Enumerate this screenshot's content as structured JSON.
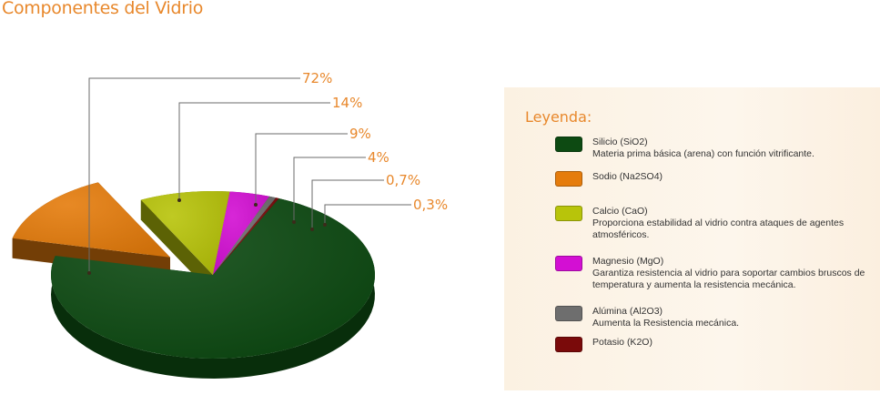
{
  "page": {
    "title": "Componentes del Vidrio"
  },
  "legend": {
    "title": "Leyenda:",
    "items": [
      {
        "name": "Silicio (SiO2)",
        "description": "Materia prima básica (arena) con función vitrificante.",
        "color": "#0d4a12"
      },
      {
        "name": "Sodio (Na2SO4)",
        "description": "",
        "color": "#e57c0c"
      },
      {
        "name": "Calcio (CaO)",
        "description": "Proporciona estabilidad al vidrio contra ataques de agentes atmosféricos.",
        "color": "#b8c40a"
      },
      {
        "name": "Magnesio (MgO)",
        "description": "Garantiza resistencia al vidrio para soportar cambios bruscos de temperatura y aumenta la resistencia mecánica.",
        "color": "#d30fd3"
      },
      {
        "name": "Alúmina (Al2O3)",
        "description": "Aumenta la Resistencia mecánica.",
        "color": "#6e6e6e"
      },
      {
        "name": "Potasio (K2O)",
        "description": "",
        "color": "#7a0a0a"
      }
    ]
  },
  "chart_data": {
    "type": "pie",
    "title": "Componentes del Vidrio",
    "categories": [
      "Silicio (SiO2)",
      "Sodio (Na2SO4)",
      "Calcio (CaO)",
      "Magnesio (MgO)",
      "Alúmina (Al2O3)",
      "Potasio (K2O)"
    ],
    "values": [
      72,
      14,
      9,
      4,
      0.7,
      0.3
    ],
    "labels": [
      "72%",
      "14%",
      "9%",
      "4%",
      "0,7%",
      "0,3%"
    ],
    "colors": [
      "#0d4a12",
      "#e57c0c",
      "#b8c40a",
      "#d30fd3",
      "#6e6e6e",
      "#7a0a0a"
    ],
    "exploded": [
      false,
      true,
      false,
      false,
      false,
      false
    ],
    "style": "3d",
    "legend": "right"
  }
}
